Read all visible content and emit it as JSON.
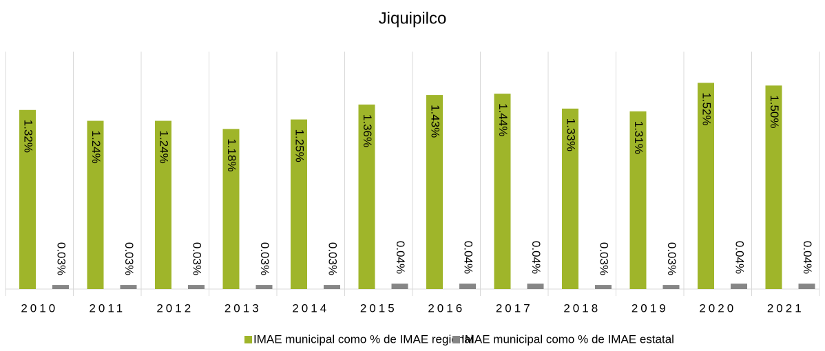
{
  "chart_data": {
    "type": "bar",
    "title": "Jiquipilco",
    "categories": [
      "2010",
      "2011",
      "2012",
      "2013",
      "2014",
      "2015",
      "2016",
      "2017",
      "2018",
      "2019",
      "2020",
      "2021"
    ],
    "series": [
      {
        "name": "IMAE municipal como % de IMAE regional",
        "color": "#9fb52a",
        "values": [
          1.32,
          1.24,
          1.24,
          1.18,
          1.25,
          1.36,
          1.43,
          1.44,
          1.33,
          1.31,
          1.52,
          1.5
        ],
        "value_labels": [
          "1.32%",
          "1.24%",
          "1.24%",
          "1.18%",
          "1.25%",
          "1.36%",
          "1.43%",
          "1.44%",
          "1.33%",
          "1.31%",
          "1.52%",
          "1.50%"
        ]
      },
      {
        "name": "IMAE municipal como % de IMAE estatal",
        "color": "#868686",
        "values": [
          0.03,
          0.03,
          0.03,
          0.03,
          0.03,
          0.04,
          0.04,
          0.04,
          0.03,
          0.03,
          0.04,
          0.04
        ],
        "value_labels": [
          "0.03%",
          "0.03%",
          "0.03%",
          "0.03%",
          "0.03%",
          "0.04%",
          "0.04%",
          "0.04%",
          "0.03%",
          "0.03%",
          "0.04%",
          "0.04%"
        ]
      }
    ],
    "ylim": [
      0,
      1.75
    ],
    "legend": "bottom"
  }
}
